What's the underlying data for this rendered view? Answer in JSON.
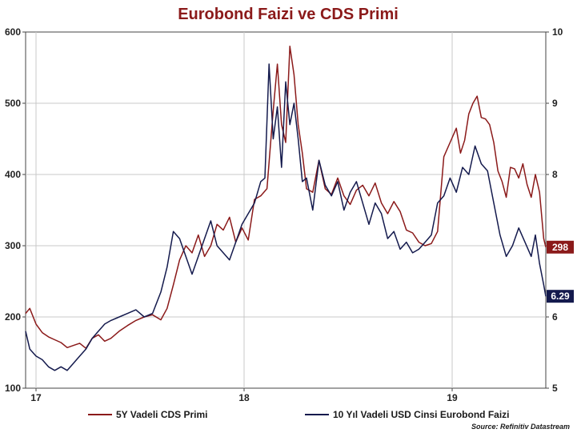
{
  "chart_data": {
    "type": "line",
    "title": "Eurobond Faizi ve CDS Primi",
    "x_ticks": [
      {
        "label": "17",
        "t": 0.0
      },
      {
        "label": "18",
        "t": 1.0
      },
      {
        "label": "19",
        "t": 2.0
      }
    ],
    "x_range": [
      -0.05,
      2.45
    ],
    "left_axis": {
      "ylim": [
        100,
        600
      ],
      "ticks": [
        "100",
        "200",
        "300",
        "400",
        "500",
        "600"
      ]
    },
    "right_axis": {
      "ylim": [
        5,
        10
      ],
      "ticks": [
        "5",
        "6",
        "7",
        "8",
        "9",
        "10"
      ]
    },
    "series": [
      {
        "name": "5Y Vadeli CDS Primi",
        "axis": "left",
        "color": "#8b1a1a",
        "points": [
          [
            -0.05,
            205
          ],
          [
            -0.03,
            212
          ],
          [
            0.0,
            190
          ],
          [
            0.03,
            178
          ],
          [
            0.06,
            172
          ],
          [
            0.09,
            168
          ],
          [
            0.12,
            164
          ],
          [
            0.15,
            157
          ],
          [
            0.18,
            160
          ],
          [
            0.21,
            163
          ],
          [
            0.24,
            156
          ],
          [
            0.27,
            170
          ],
          [
            0.3,
            175
          ],
          [
            0.33,
            166
          ],
          [
            0.36,
            170
          ],
          [
            0.4,
            180
          ],
          [
            0.44,
            188
          ],
          [
            0.48,
            195
          ],
          [
            0.52,
            200
          ],
          [
            0.56,
            203
          ],
          [
            0.6,
            196
          ],
          [
            0.63,
            212
          ],
          [
            0.66,
            245
          ],
          [
            0.69,
            280
          ],
          [
            0.72,
            300
          ],
          [
            0.75,
            290
          ],
          [
            0.78,
            315
          ],
          [
            0.81,
            285
          ],
          [
            0.84,
            300
          ],
          [
            0.87,
            330
          ],
          [
            0.9,
            322
          ],
          [
            0.93,
            340
          ],
          [
            0.96,
            305
          ],
          [
            0.99,
            325
          ],
          [
            1.02,
            308
          ],
          [
            1.05,
            365
          ],
          [
            1.08,
            370
          ],
          [
            1.11,
            380
          ],
          [
            1.14,
            490
          ],
          [
            1.16,
            555
          ],
          [
            1.18,
            470
          ],
          [
            1.2,
            445
          ],
          [
            1.22,
            580
          ],
          [
            1.24,
            540
          ],
          [
            1.26,
            470
          ],
          [
            1.28,
            430
          ],
          [
            1.3,
            380
          ],
          [
            1.33,
            375
          ],
          [
            1.36,
            420
          ],
          [
            1.39,
            380
          ],
          [
            1.42,
            372
          ],
          [
            1.45,
            395
          ],
          [
            1.48,
            370
          ],
          [
            1.51,
            358
          ],
          [
            1.54,
            378
          ],
          [
            1.57,
            385
          ],
          [
            1.6,
            370
          ],
          [
            1.63,
            388
          ],
          [
            1.66,
            360
          ],
          [
            1.69,
            345
          ],
          [
            1.72,
            362
          ],
          [
            1.75,
            348
          ],
          [
            1.78,
            322
          ],
          [
            1.81,
            318
          ],
          [
            1.84,
            305
          ],
          [
            1.87,
            300
          ],
          [
            1.9,
            303
          ],
          [
            1.93,
            320
          ],
          [
            1.96,
            425
          ],
          [
            1.99,
            445
          ],
          [
            2.02,
            465
          ],
          [
            2.04,
            430
          ],
          [
            2.06,
            448
          ],
          [
            2.08,
            485
          ],
          [
            2.1,
            500
          ],
          [
            2.12,
            510
          ],
          [
            2.14,
            480
          ],
          [
            2.16,
            478
          ],
          [
            2.18,
            470
          ],
          [
            2.2,
            445
          ],
          [
            2.22,
            405
          ],
          [
            2.24,
            390
          ],
          [
            2.26,
            368
          ],
          [
            2.28,
            410
          ],
          [
            2.3,
            408
          ],
          [
            2.32,
            395
          ],
          [
            2.34,
            415
          ],
          [
            2.36,
            386
          ],
          [
            2.38,
            368
          ],
          [
            2.4,
            400
          ],
          [
            2.42,
            375
          ],
          [
            2.44,
            310
          ],
          [
            2.45,
            298
          ]
        ],
        "end_label": "298"
      },
      {
        "name": "10 Yıl Vadeli USD Cinsi Eurobond Faizi",
        "axis": "right",
        "color": "#141a4d",
        "points": [
          [
            -0.05,
            5.8
          ],
          [
            -0.03,
            5.55
          ],
          [
            0.0,
            5.45
          ],
          [
            0.03,
            5.4
          ],
          [
            0.06,
            5.3
          ],
          [
            0.09,
            5.25
          ],
          [
            0.12,
            5.3
          ],
          [
            0.15,
            5.25
          ],
          [
            0.18,
            5.35
          ],
          [
            0.21,
            5.45
          ],
          [
            0.24,
            5.55
          ],
          [
            0.27,
            5.7
          ],
          [
            0.3,
            5.8
          ],
          [
            0.33,
            5.9
          ],
          [
            0.36,
            5.95
          ],
          [
            0.4,
            6.0
          ],
          [
            0.44,
            6.05
          ],
          [
            0.48,
            6.1
          ],
          [
            0.52,
            6.0
          ],
          [
            0.56,
            6.05
          ],
          [
            0.6,
            6.35
          ],
          [
            0.63,
            6.7
          ],
          [
            0.66,
            7.2
          ],
          [
            0.69,
            7.1
          ],
          [
            0.72,
            6.85
          ],
          [
            0.75,
            6.6
          ],
          [
            0.78,
            6.85
          ],
          [
            0.81,
            7.1
          ],
          [
            0.84,
            7.35
          ],
          [
            0.87,
            7.0
          ],
          [
            0.9,
            6.9
          ],
          [
            0.93,
            6.8
          ],
          [
            0.96,
            7.05
          ],
          [
            0.99,
            7.3
          ],
          [
            1.02,
            7.45
          ],
          [
            1.05,
            7.6
          ],
          [
            1.08,
            7.9
          ],
          [
            1.1,
            7.95
          ],
          [
            1.12,
            9.55
          ],
          [
            1.14,
            8.5
          ],
          [
            1.16,
            8.95
          ],
          [
            1.18,
            8.1
          ],
          [
            1.2,
            9.3
          ],
          [
            1.22,
            8.7
          ],
          [
            1.24,
            9.0
          ],
          [
            1.26,
            8.5
          ],
          [
            1.28,
            7.9
          ],
          [
            1.3,
            7.95
          ],
          [
            1.33,
            7.5
          ],
          [
            1.36,
            8.2
          ],
          [
            1.39,
            7.85
          ],
          [
            1.42,
            7.7
          ],
          [
            1.45,
            7.9
          ],
          [
            1.48,
            7.5
          ],
          [
            1.51,
            7.75
          ],
          [
            1.54,
            7.9
          ],
          [
            1.57,
            7.6
          ],
          [
            1.6,
            7.3
          ],
          [
            1.63,
            7.6
          ],
          [
            1.66,
            7.45
          ],
          [
            1.69,
            7.1
          ],
          [
            1.72,
            7.2
          ],
          [
            1.75,
            6.95
          ],
          [
            1.78,
            7.05
          ],
          [
            1.81,
            6.9
          ],
          [
            1.84,
            6.95
          ],
          [
            1.87,
            7.05
          ],
          [
            1.9,
            7.15
          ],
          [
            1.93,
            7.6
          ],
          [
            1.96,
            7.7
          ],
          [
            1.99,
            7.95
          ],
          [
            2.02,
            7.75
          ],
          [
            2.05,
            8.1
          ],
          [
            2.08,
            8.0
          ],
          [
            2.11,
            8.4
          ],
          [
            2.14,
            8.15
          ],
          [
            2.17,
            8.05
          ],
          [
            2.2,
            7.6
          ],
          [
            2.23,
            7.15
          ],
          [
            2.26,
            6.85
          ],
          [
            2.29,
            7.0
          ],
          [
            2.32,
            7.25
          ],
          [
            2.35,
            7.05
          ],
          [
            2.38,
            6.85
          ],
          [
            2.4,
            7.15
          ],
          [
            2.42,
            6.75
          ],
          [
            2.44,
            6.45
          ],
          [
            2.45,
            6.29
          ]
        ],
        "end_label": "6.29"
      }
    ],
    "source": "Source: Refinitiv Datastream"
  }
}
